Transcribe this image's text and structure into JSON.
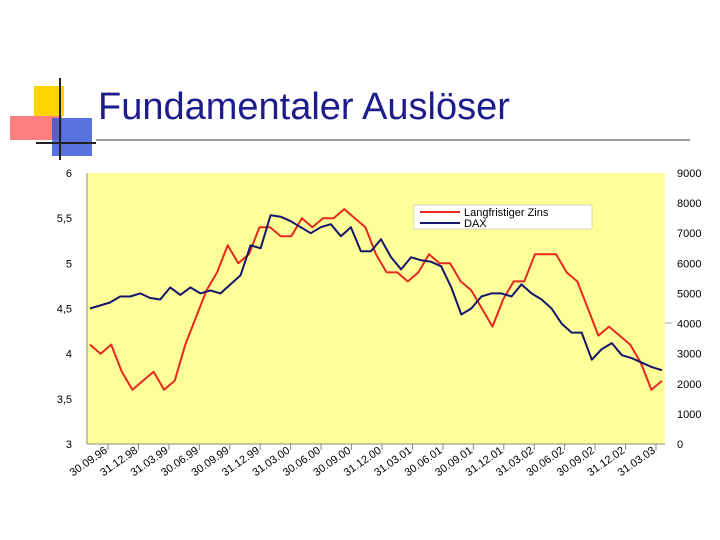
{
  "slide": {
    "title": "Fundamentaler Auslöser"
  },
  "colors": {
    "plot_bg": "#ffff99",
    "zins": "#e8281e",
    "dax": "#15156e",
    "title": "#1c1c8c"
  },
  "chart_data": {
    "type": "line",
    "title": "",
    "xlabel": "",
    "ylabel": "",
    "y_left": {
      "range": [
        3,
        6
      ],
      "ticks": [
        "6",
        "5,5",
        "5",
        "4,5",
        "4",
        "3,5",
        "3"
      ]
    },
    "y_right": {
      "range": [
        0,
        9000
      ],
      "ticks": [
        "9000",
        "8000",
        "7000",
        "6000",
        "5000",
        "4000",
        "3000",
        "2000",
        "1000",
        "0"
      ]
    },
    "x_tick_labels": [
      "30.09.96",
      "31.12.98",
      "31.03.99",
      "30.06.99",
      "30.09.99",
      "31.12.99",
      "31.03.00",
      "30.06.00",
      "30.09.00",
      "31.12.00",
      "31.03.01",
      "30.06.01",
      "30.09.01",
      "31.12.01",
      "31.03.02",
      "30.06.02",
      "30.09.02",
      "31.12.02",
      "31.03.03"
    ],
    "grid": false,
    "legend_position": "top-right",
    "series": [
      {
        "name": "Langfristiger Zins",
        "axis": "left",
        "values": [
          4.1,
          4.0,
          4.1,
          3.8,
          3.6,
          3.7,
          3.8,
          3.6,
          3.7,
          4.1,
          4.4,
          4.7,
          4.9,
          5.2,
          5.0,
          5.1,
          5.4,
          5.4,
          5.3,
          5.3,
          5.5,
          5.4,
          5.5,
          5.5,
          5.6,
          5.5,
          5.4,
          5.1,
          4.9,
          4.9,
          4.8,
          4.9,
          5.1,
          5.0,
          5.0,
          4.8,
          4.7,
          4.5,
          4.3,
          4.6,
          4.8,
          4.8,
          5.1,
          5.1,
          5.1,
          4.9,
          4.8,
          4.5,
          4.2,
          4.3,
          4.2,
          4.1,
          3.9,
          3.6,
          3.7
        ]
      },
      {
        "name": "DAX",
        "axis": "right",
        "values": [
          4500,
          4600,
          4700,
          4900,
          4900,
          5000,
          4850,
          4800,
          5200,
          4950,
          5200,
          5000,
          5100,
          5000,
          5300,
          5600,
          6600,
          6500,
          7600,
          7550,
          7400,
          7200,
          7000,
          7200,
          7300,
          6900,
          7200,
          6400,
          6400,
          6800,
          6200,
          5800,
          6200,
          6100,
          6050,
          5900,
          5200,
          4300,
          4500,
          4900,
          5000,
          5000,
          4900,
          5300,
          5000,
          4800,
          4500,
          4000,
          3700,
          3700,
          2800,
          3150,
          3350,
          2950,
          2850,
          2700,
          2550,
          2450
        ]
      }
    ]
  }
}
